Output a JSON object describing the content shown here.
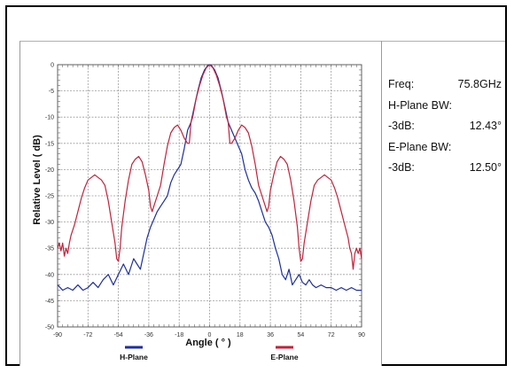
{
  "chart_data": {
    "type": "line",
    "title": "",
    "xlabel": "Angle ( ° )",
    "ylabel": "Relative Level ( dB)",
    "xlim": [
      -90,
      90
    ],
    "ylim": [
      -50,
      0
    ],
    "x_ticks": [
      -90,
      -72,
      -54,
      -36,
      -18,
      0,
      18,
      36,
      54,
      72,
      90
    ],
    "y_ticks": [
      0,
      -5,
      -10,
      -15,
      -20,
      -25,
      -30,
      -35,
      -40,
      -45,
      -50
    ],
    "grid": true,
    "legend_position": "bottom",
    "series": [
      {
        "name": "H-Plane",
        "color": "#1c2fa0",
        "points": [
          [
            -90,
            -42
          ],
          [
            -87,
            -43
          ],
          [
            -84,
            -42.5
          ],
          [
            -81,
            -43
          ],
          [
            -78,
            -42
          ],
          [
            -75,
            -43
          ],
          [
            -72,
            -42.5
          ],
          [
            -69,
            -41.5
          ],
          [
            -66,
            -42.5
          ],
          [
            -63,
            -41
          ],
          [
            -60,
            -40
          ],
          [
            -57,
            -42
          ],
          [
            -54,
            -40
          ],
          [
            -51,
            -38
          ],
          [
            -48,
            -40
          ],
          [
            -45,
            -37
          ],
          [
            -43,
            -38
          ],
          [
            -41,
            -39
          ],
          [
            -39,
            -36
          ],
          [
            -37,
            -33
          ],
          [
            -35,
            -31
          ],
          [
            -33,
            -29.5
          ],
          [
            -31,
            -28
          ],
          [
            -29,
            -27
          ],
          [
            -27,
            -26
          ],
          [
            -25,
            -25
          ],
          [
            -23,
            -22.5
          ],
          [
            -21,
            -21
          ],
          [
            -19,
            -20
          ],
          [
            -17,
            -19
          ],
          [
            -15,
            -16
          ],
          [
            -13,
            -12.5
          ],
          [
            -11,
            -11
          ],
          [
            -9,
            -8
          ],
          [
            -7,
            -5
          ],
          [
            -5,
            -2.5
          ],
          [
            -3,
            -1
          ],
          [
            -1,
            -0.1
          ],
          [
            0,
            0
          ],
          [
            1,
            -0.1
          ],
          [
            3,
            -1
          ],
          [
            5,
            -2.5
          ],
          [
            7,
            -5
          ],
          [
            9,
            -8
          ],
          [
            11,
            -11
          ],
          [
            13,
            -12.5
          ],
          [
            15,
            -14
          ],
          [
            17,
            -15.5
          ],
          [
            19,
            -17
          ],
          [
            21,
            -20
          ],
          [
            23,
            -22
          ],
          [
            25,
            -23.5
          ],
          [
            27,
            -24.5
          ],
          [
            29,
            -26
          ],
          [
            31,
            -28
          ],
          [
            33,
            -30
          ],
          [
            35,
            -31
          ],
          [
            37,
            -32.5
          ],
          [
            39,
            -35
          ],
          [
            41,
            -37
          ],
          [
            43,
            -40
          ],
          [
            45,
            -41
          ],
          [
            47,
            -39
          ],
          [
            49,
            -42
          ],
          [
            51,
            -41
          ],
          [
            53,
            -40
          ],
          [
            55,
            -41.5
          ],
          [
            57,
            -42
          ],
          [
            59,
            -41
          ],
          [
            61,
            -42
          ],
          [
            63,
            -42.5
          ],
          [
            66,
            -42
          ],
          [
            69,
            -42.5
          ],
          [
            72,
            -42.5
          ],
          [
            75,
            -43
          ],
          [
            78,
            -42.5
          ],
          [
            81,
            -43
          ],
          [
            84,
            -42.5
          ],
          [
            87,
            -43
          ],
          [
            90,
            -43
          ]
        ]
      },
      {
        "name": "E-Plane",
        "color": "#c2223a",
        "points": [
          [
            -90,
            -35
          ],
          [
            -89,
            -34
          ],
          [
            -88,
            -35.5
          ],
          [
            -87,
            -34
          ],
          [
            -86,
            -36.5
          ],
          [
            -85,
            -35
          ],
          [
            -84,
            -36
          ],
          [
            -83,
            -34
          ],
          [
            -82,
            -32.5
          ],
          [
            -80,
            -30.5
          ],
          [
            -78,
            -28
          ],
          [
            -76,
            -25.5
          ],
          [
            -74,
            -23.5
          ],
          [
            -72,
            -22
          ],
          [
            -70,
            -21.5
          ],
          [
            -68,
            -21
          ],
          [
            -66,
            -21.5
          ],
          [
            -64,
            -22
          ],
          [
            -62,
            -23
          ],
          [
            -60,
            -26
          ],
          [
            -58,
            -30
          ],
          [
            -56,
            -34
          ],
          [
            -55,
            -37
          ],
          [
            -54,
            -37.5
          ],
          [
            -53,
            -35
          ],
          [
            -52,
            -31
          ],
          [
            -50,
            -26
          ],
          [
            -48,
            -22
          ],
          [
            -46,
            -19
          ],
          [
            -44,
            -18
          ],
          [
            -42,
            -17.5
          ],
          [
            -40,
            -18.5
          ],
          [
            -38,
            -21
          ],
          [
            -36,
            -24
          ],
          [
            -35,
            -27
          ],
          [
            -34,
            -28
          ],
          [
            -33,
            -27
          ],
          [
            -31,
            -25
          ],
          [
            -29,
            -23
          ],
          [
            -27,
            -19
          ],
          [
            -25,
            -15.5
          ],
          [
            -23,
            -13
          ],
          [
            -21,
            -12
          ],
          [
            -19,
            -11.5
          ],
          [
            -17,
            -12.5
          ],
          [
            -15,
            -14
          ],
          [
            -13,
            -15
          ],
          [
            -12,
            -15
          ],
          [
            -11,
            -11
          ],
          [
            -10,
            -10
          ],
          [
            -8,
            -6.5
          ],
          [
            -6,
            -4
          ],
          [
            -4,
            -2
          ],
          [
            -2,
            -0.6
          ],
          [
            0,
            0
          ],
          [
            2,
            -0.6
          ],
          [
            4,
            -2
          ],
          [
            6,
            -4
          ],
          [
            8,
            -6.5
          ],
          [
            10,
            -10
          ],
          [
            11,
            -11
          ],
          [
            12,
            -15
          ],
          [
            13,
            -15
          ],
          [
            15,
            -14
          ],
          [
            17,
            -12.5
          ],
          [
            19,
            -11.5
          ],
          [
            21,
            -12
          ],
          [
            23,
            -13
          ],
          [
            25,
            -15.5
          ],
          [
            27,
            -19
          ],
          [
            29,
            -23
          ],
          [
            31,
            -25
          ],
          [
            33,
            -27
          ],
          [
            34,
            -28
          ],
          [
            35,
            -27
          ],
          [
            36,
            -24
          ],
          [
            38,
            -21
          ],
          [
            40,
            -18.5
          ],
          [
            42,
            -17.5
          ],
          [
            44,
            -18
          ],
          [
            46,
            -19
          ],
          [
            48,
            -22
          ],
          [
            50,
            -26
          ],
          [
            52,
            -31
          ],
          [
            53,
            -35
          ],
          [
            54,
            -37.5
          ],
          [
            55,
            -37
          ],
          [
            56,
            -34
          ],
          [
            58,
            -30
          ],
          [
            60,
            -26
          ],
          [
            62,
            -23
          ],
          [
            64,
            -22
          ],
          [
            66,
            -21.5
          ],
          [
            68,
            -21
          ],
          [
            70,
            -21.5
          ],
          [
            72,
            -22
          ],
          [
            74,
            -23.5
          ],
          [
            76,
            -25.5
          ],
          [
            78,
            -28
          ],
          [
            80,
            -30.5
          ],
          [
            82,
            -33
          ],
          [
            83,
            -35
          ],
          [
            84,
            -36
          ],
          [
            85,
            -39
          ],
          [
            86,
            -36
          ],
          [
            87,
            -35
          ],
          [
            88,
            -36
          ],
          [
            89,
            -35
          ],
          [
            90,
            -37
          ]
        ]
      }
    ]
  },
  "info": {
    "freq_label": "Freq:",
    "freq_value": "75.8GHz",
    "h_plane_label": "H-Plane BW:",
    "h_3db_label": "-3dB:",
    "h_3db_value": "12.43°",
    "e_plane_label": "E-Plane BW:",
    "e_3db_label": "-3dB:",
    "e_3db_value": "12.50°"
  }
}
